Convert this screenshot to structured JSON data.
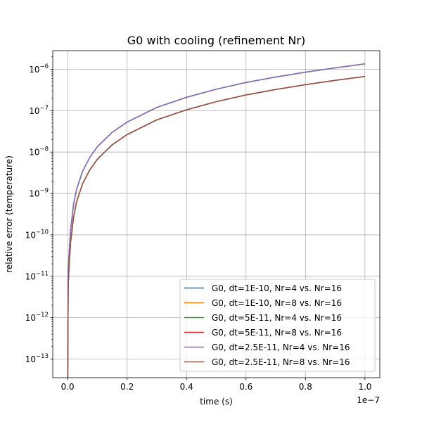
{
  "chart_data": {
    "type": "line",
    "title": "G0 with cooling (refinement Nr)",
    "xlabel": "time (s)",
    "ylabel": "relative error (temperature)",
    "x_offset_label": "1e−7",
    "xlim": [
      -0.05,
      1.05
    ],
    "ylim_exp": [
      -13.45,
      -5.55
    ],
    "y_scale": "log",
    "grid": true,
    "legend_position": "lower-right",
    "x_ticks": [
      {
        "value": 0.0,
        "label": "0.0"
      },
      {
        "value": 0.2,
        "label": "0.2"
      },
      {
        "value": 0.4,
        "label": "0.4"
      },
      {
        "value": 0.6,
        "label": "0.6"
      },
      {
        "value": 0.8,
        "label": "0.8"
      },
      {
        "value": 1.0,
        "label": "1.0"
      }
    ],
    "y_ticks": [
      {
        "exp": -6,
        "base": "10",
        "power": "−6"
      },
      {
        "exp": -7,
        "base": "10",
        "power": "−7"
      },
      {
        "exp": -8,
        "base": "10",
        "power": "−8"
      },
      {
        "exp": -9,
        "base": "10",
        "power": "−9"
      },
      {
        "exp": -10,
        "base": "10",
        "power": "−10"
      },
      {
        "exp": -11,
        "base": "10",
        "power": "−11"
      },
      {
        "exp": -12,
        "base": "10",
        "power": "−12"
      },
      {
        "exp": -13,
        "base": "10",
        "power": "−13"
      }
    ],
    "curve_x": [
      0.0,
      0.002,
      0.005,
      0.01,
      0.02,
      0.03,
      0.05,
      0.075,
      0.1,
      0.15,
      0.2,
      0.3,
      0.4,
      0.5,
      0.6,
      0.7,
      0.8,
      0.9,
      1.0
    ],
    "series": [
      {
        "name": "G0, dt=1E-10, Nr=4 vs. Nr=16",
        "color": "#1f77b4",
        "y": [
          1e-14,
          1.2e-11,
          3.5e-11,
          1.3e-10,
          5.5e-10,
          1.25e-09,
          3.4e-09,
          7.5e-09,
          1.35e-08,
          3e-08,
          5.3e-08,
          1.2e-07,
          2.1e-07,
          3.3e-07,
          4.8e-07,
          6.5e-07,
          8.5e-07,
          1.08e-06,
          1.35e-06
        ]
      },
      {
        "name": "G0, dt=1E-10, Nr=8 vs. Nr=16",
        "color": "#ff7f0e",
        "y": [
          1e-14,
          6e-12,
          1.75e-11,
          6.5e-11,
          2.7e-10,
          6.2e-10,
          1.7e-09,
          3.75e-09,
          6.7e-09,
          1.5e-08,
          2.65e-08,
          6e-08,
          1.05e-07,
          1.65e-07,
          2.4e-07,
          3.25e-07,
          4.25e-07,
          5.4e-07,
          6.7e-07
        ]
      },
      {
        "name": "G0, dt=5E-11, Nr=4 vs. Nr=16",
        "color": "#2ca02c",
        "y": [
          1e-14,
          1.2e-11,
          3.5e-11,
          1.3e-10,
          5.5e-10,
          1.25e-09,
          3.4e-09,
          7.5e-09,
          1.35e-08,
          3e-08,
          5.3e-08,
          1.2e-07,
          2.1e-07,
          3.3e-07,
          4.8e-07,
          6.5e-07,
          8.5e-07,
          1.08e-06,
          1.35e-06
        ]
      },
      {
        "name": "G0, dt=5E-11, Nr=8 vs. Nr=16",
        "color": "#d62728",
        "y": [
          1e-14,
          6e-12,
          1.75e-11,
          6.5e-11,
          2.7e-10,
          6.2e-10,
          1.7e-09,
          3.75e-09,
          6.7e-09,
          1.5e-08,
          2.65e-08,
          6e-08,
          1.05e-07,
          1.65e-07,
          2.4e-07,
          3.25e-07,
          4.25e-07,
          5.4e-07,
          6.7e-07
        ]
      },
      {
        "name": "G0, dt=2.5E-11, Nr=4 vs. Nr=16",
        "color": "#9467bd",
        "y": [
          1e-14,
          1.2e-11,
          3.5e-11,
          1.3e-10,
          5.5e-10,
          1.25e-09,
          3.4e-09,
          7.5e-09,
          1.35e-08,
          3e-08,
          5.3e-08,
          1.2e-07,
          2.1e-07,
          3.3e-07,
          4.8e-07,
          6.5e-07,
          8.5e-07,
          1.08e-06,
          1.35e-06
        ]
      },
      {
        "name": "G0, dt=2.5E-11, Nr=8 vs. Nr=16",
        "color": "#8c564b",
        "y": [
          1e-14,
          6e-12,
          1.75e-11,
          6.5e-11,
          2.7e-10,
          6.2e-10,
          1.7e-09,
          3.75e-09,
          6.7e-09,
          1.5e-08,
          2.65e-08,
          6e-08,
          1.05e-07,
          1.65e-07,
          2.4e-07,
          3.25e-07,
          4.25e-07,
          5.4e-07,
          6.7e-07
        ]
      }
    ]
  }
}
